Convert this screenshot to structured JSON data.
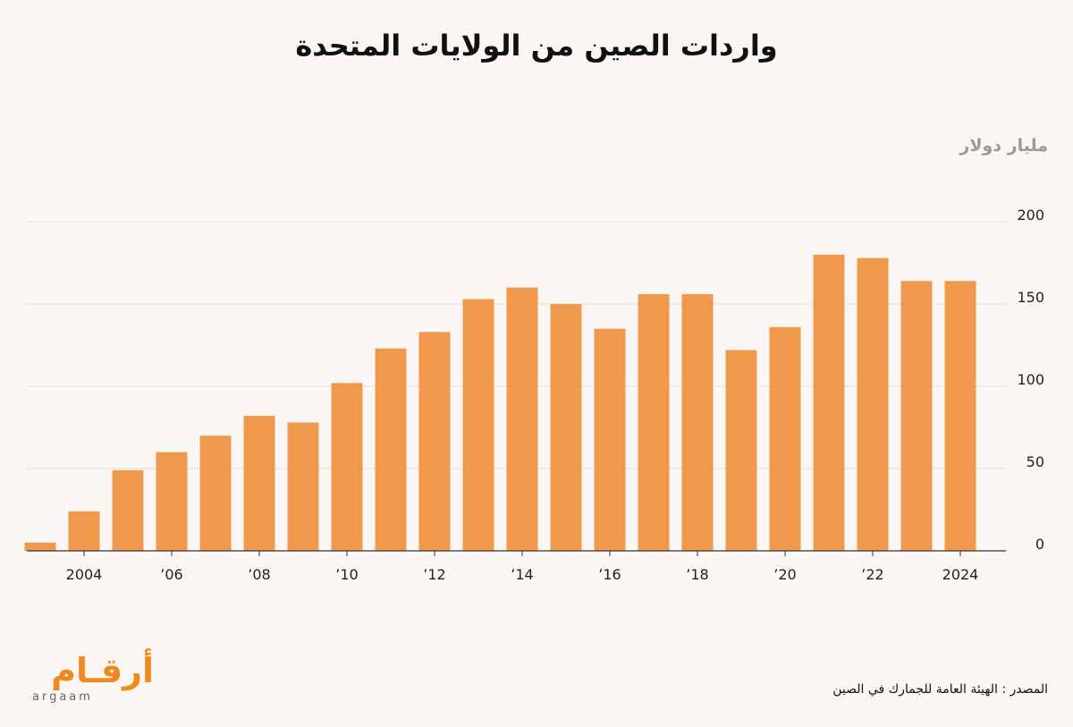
{
  "title": "واردات الصين من الولايات المتحدة",
  "source": "المصدر : الهيئة العامة للجمارك في الصين",
  "logo": {
    "arabic": "أرقـام",
    "latin": "argaam"
  },
  "colors": {
    "bar": "#f0994d",
    "grid": "#dddddd",
    "background": "#faf6f3",
    "accent": "#f08a1e"
  },
  "chart_data": {
    "type": "bar",
    "ylabel": "مليار دولار",
    "ylim": [
      0,
      200
    ],
    "yticks": [
      0,
      50,
      100,
      150,
      200
    ],
    "grid": true,
    "categories": [
      "2003",
      "2004",
      "2005",
      "2006",
      "2007",
      "2008",
      "2009",
      "2010",
      "2011",
      "2012",
      "2013",
      "2014",
      "2015",
      "2016",
      "2017",
      "2018",
      "2019",
      "2020",
      "2021",
      "2022",
      "2023",
      "2024"
    ],
    "values": [
      5,
      24,
      49,
      60,
      70,
      82,
      78,
      102,
      123,
      133,
      153,
      160,
      150,
      135,
      156,
      156,
      122,
      136,
      180,
      178,
      164,
      164
    ],
    "xtick_labels": [
      {
        "category": "2004",
        "label": "2004"
      },
      {
        "category": "2006",
        "label": "’06"
      },
      {
        "category": "2008",
        "label": "’08"
      },
      {
        "category": "2010",
        "label": "’10"
      },
      {
        "category": "2012",
        "label": "’12"
      },
      {
        "category": "2014",
        "label": "’14"
      },
      {
        "category": "2016",
        "label": "’16"
      },
      {
        "category": "2018",
        "label": "’18"
      },
      {
        "category": "2020",
        "label": "’20"
      },
      {
        "category": "2022",
        "label": "’22"
      },
      {
        "category": "2024",
        "label": "2024"
      }
    ]
  }
}
